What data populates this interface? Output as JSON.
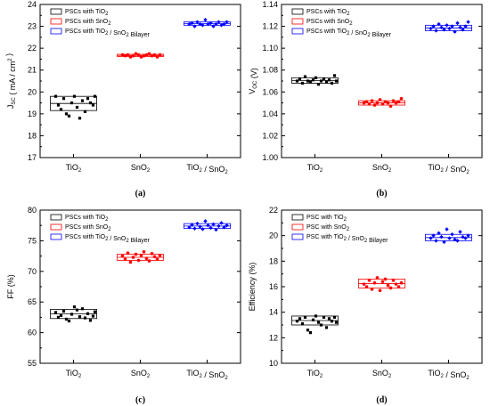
{
  "chart_data": [
    {
      "type": "scatter",
      "panel_label": "(a)",
      "ylabel_html": "J<sub>SC</sub> ( mA / cm<sup>2</sup> )",
      "ylim": [
        17,
        24
      ],
      "yticks": [
        17,
        18,
        19,
        20,
        21,
        22,
        23,
        24
      ],
      "ytick_decimals": 0,
      "categories": [
        "TiO2",
        "SnO2",
        "TiO2 / SnO2"
      ],
      "legend": [
        "PSCs with TiO2",
        "PSCs with SnO2",
        "PSCs with TiO2 / SnO2 Bilayer"
      ],
      "colors": [
        "#000000",
        "#ff0000",
        "#0000ff"
      ],
      "box": [
        [
          19.15,
          19.8
        ],
        [
          21.62,
          21.72
        ],
        [
          23.05,
          23.2
        ]
      ],
      "series": [
        {
          "category": "TiO2",
          "values": [
            19.8,
            19.4,
            19.2,
            19.7,
            19.0,
            18.9,
            19.5,
            19.8,
            19.3,
            18.8,
            19.6,
            19.1,
            19.7,
            19.5,
            19.4,
            19.8
          ]
        },
        {
          "category": "SnO2",
          "values": [
            21.7,
            21.65,
            21.7,
            21.6,
            21.65,
            21.75,
            21.7,
            21.6,
            21.65,
            21.7,
            21.75,
            21.65,
            21.7,
            21.6,
            21.7
          ]
        },
        {
          "category": "TiO2 / SnO2",
          "values": [
            23.1,
            23.15,
            23.0,
            23.2,
            23.1,
            23.05,
            23.3,
            23.1,
            23.15,
            23.0,
            23.1,
            23.2,
            23.05,
            23.1,
            23.2
          ]
        }
      ]
    },
    {
      "type": "scatter",
      "panel_label": "(b)",
      "ylabel_html": "V<sub>OC</sub> (V)",
      "ylim": [
        1.0,
        1.14
      ],
      "yticks": [
        1.0,
        1.02,
        1.04,
        1.06,
        1.08,
        1.1,
        1.12,
        1.14
      ],
      "ytick_decimals": 2,
      "categories": [
        "TiO2",
        "SnO2",
        "TiO2 / SnO2"
      ],
      "legend": [
        "PSCs with TiO2",
        "PSCs with SnO2",
        "PSCs with TiO2 / SnO2 Bilayer"
      ],
      "colors": [
        "#000000",
        "#ff0000",
        "#0000ff"
      ],
      "box": [
        [
          1.068,
          1.073
        ],
        [
          1.048,
          1.052
        ],
        [
          1.116,
          1.121
        ]
      ],
      "series": [
        {
          "category": "TiO2",
          "values": [
            1.07,
            1.072,
            1.068,
            1.074,
            1.07,
            1.069,
            1.071,
            1.073,
            1.067,
            1.07,
            1.072,
            1.069,
            1.071,
            1.068,
            1.075,
            1.07
          ]
        },
        {
          "category": "SnO2",
          "values": [
            1.05,
            1.051,
            1.049,
            1.052,
            1.048,
            1.05,
            1.053,
            1.049,
            1.051,
            1.05,
            1.047,
            1.052,
            1.05,
            1.051,
            1.054
          ]
        },
        {
          "category": "TiO2 / SnO2",
          "values": [
            1.118,
            1.12,
            1.116,
            1.122,
            1.119,
            1.117,
            1.121,
            1.118,
            1.12,
            1.115,
            1.123,
            1.119,
            1.117,
            1.12,
            1.124
          ]
        }
      ]
    },
    {
      "type": "scatter",
      "panel_label": "(c)",
      "ylabel_html": "FF (%)",
      "ylim": [
        55,
        80
      ],
      "yticks": [
        55,
        60,
        65,
        70,
        75,
        80
      ],
      "ytick_decimals": 0,
      "categories": [
        "TiO2",
        "SnO2",
        "TiO2 / SnO2"
      ],
      "legend": [
        "PSCs with TiO2",
        "PSCs with SnO2",
        "PSCs with TiO2 / SnO2 Bilayer"
      ],
      "colors": [
        "#000000",
        "#ff0000",
        "#0000ff"
      ],
      "box": [
        [
          62.3,
          63.8
        ],
        [
          71.8,
          72.8
        ],
        [
          77.0,
          77.8
        ]
      ],
      "series": [
        {
          "category": "TiO2",
          "values": [
            63.3,
            62.5,
            62.8,
            63.5,
            62.2,
            61.9,
            63.0,
            64.2,
            63.7,
            62.6,
            63.9,
            62.4,
            63.1,
            62.0,
            62.7,
            63.4
          ]
        },
        {
          "category": "SnO2",
          "values": [
            72.5,
            72.0,
            73.0,
            71.5,
            72.3,
            72.8,
            71.8,
            72.6,
            73.2,
            72.1,
            71.7,
            72.9,
            72.4,
            72.0,
            72.6
          ]
        },
        {
          "category": "TiO2 / SnO2",
          "values": [
            77.2,
            77.6,
            77.0,
            77.8,
            77.3,
            76.9,
            78.2,
            77.5,
            77.1,
            77.7,
            76.8,
            77.4,
            77.9,
            77.2,
            77.5
          ]
        }
      ]
    },
    {
      "type": "scatter",
      "panel_label": "(d)",
      "ylabel_html": "Efficiency (%)",
      "ylim": [
        10,
        22
      ],
      "yticks": [
        10,
        12,
        14,
        16,
        18,
        20,
        22
      ],
      "ytick_decimals": 0,
      "categories": [
        "TiO2",
        "SnO2",
        "TiO2 / SnO2"
      ],
      "legend": [
        "PSC with TiO2",
        "PSC with SnO2",
        "PSC with TiO2 / SnO2 Bilayer"
      ],
      "colors": [
        "#000000",
        "#ff0000",
        "#0000ff"
      ],
      "box": [
        [
          13.0,
          13.7
        ],
        [
          15.9,
          16.6
        ],
        [
          19.6,
          20.1
        ]
      ],
      "series": [
        {
          "category": "TiO2",
          "values": [
            13.3,
            13.5,
            13.1,
            13.6,
            12.6,
            12.4,
            13.4,
            13.7,
            13.2,
            13.0,
            13.6,
            12.8,
            13.5,
            13.3,
            13.6,
            13.2
          ]
        },
        {
          "category": "SnO2",
          "values": [
            16.2,
            16.0,
            16.5,
            15.8,
            16.3,
            16.7,
            15.7,
            16.4,
            16.6,
            16.1,
            15.9,
            16.5,
            16.2,
            16.0,
            16.3
          ]
        },
        {
          "category": "TiO2 / SnO2",
          "values": [
            19.8,
            20.0,
            19.6,
            20.2,
            19.9,
            19.5,
            20.5,
            19.8,
            20.1,
            19.7,
            19.6,
            20.3,
            19.9,
            19.8,
            20.0
          ]
        }
      ]
    }
  ]
}
